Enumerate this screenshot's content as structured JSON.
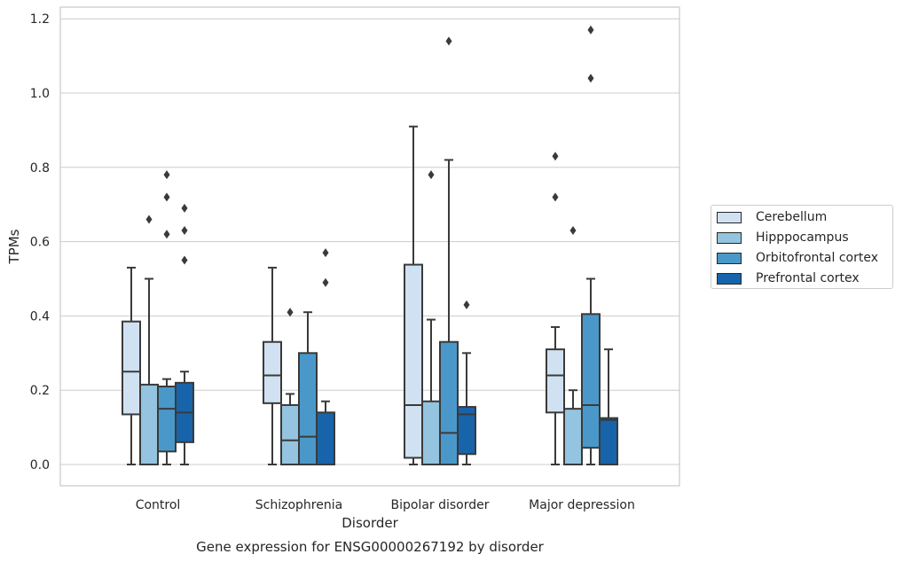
{
  "chart_data": {
    "type": "box",
    "title": "Gene expression for ENSG00000267192 by disorder",
    "xlabel": "Disorder",
    "ylabel": "TPMs",
    "ylim": [
      -0.057,
      1.23
    ],
    "yticks": [
      "0.0",
      "0.2",
      "0.4",
      "0.6",
      "0.8",
      "1.0",
      "1.2"
    ],
    "ytick_values": [
      0,
      0.2,
      0.4,
      0.6,
      0.8,
      1.0,
      1.2
    ],
    "categories": [
      "Control",
      "Schizophrenia",
      "Bipolar disorder",
      "Major depression"
    ],
    "grid": "horizontal",
    "legend_placement": "right",
    "series": [
      {
        "name": "Cerebellum",
        "color": "#d0e1f2",
        "boxes": [
          {
            "whisker_low": 0,
            "q1": 0.135,
            "median": 0.25,
            "q3": 0.385,
            "whisker_high": 0.53,
            "outliers": []
          },
          {
            "whisker_low": 0,
            "q1": 0.165,
            "median": 0.24,
            "q3": 0.33,
            "whisker_high": 0.53,
            "outliers": []
          },
          {
            "whisker_low": 0,
            "q1": 0.018,
            "median": 0.16,
            "q3": 0.538,
            "whisker_high": 0.91,
            "outliers": []
          },
          {
            "whisker_low": 0,
            "q1": 0.14,
            "median": 0.24,
            "q3": 0.31,
            "whisker_high": 0.37,
            "outliers": [
              0.72,
              0.83
            ]
          }
        ]
      },
      {
        "name": "Hipppocampus",
        "color": "#94c4df",
        "boxes": [
          {
            "whisker_low": 0,
            "q1": 0,
            "median": 0,
            "q3": 0.215,
            "whisker_high": 0.5,
            "outliers": [
              0.66
            ]
          },
          {
            "whisker_low": 0,
            "q1": 0,
            "median": 0.065,
            "q3": 0.16,
            "whisker_high": 0.19,
            "outliers": [
              0.41
            ]
          },
          {
            "whisker_low": 0,
            "q1": 0,
            "median": 0,
            "q3": 0.17,
            "whisker_high": 0.39,
            "outliers": [
              0.78
            ]
          },
          {
            "whisker_low": 0,
            "q1": 0,
            "median": 0,
            "q3": 0.15,
            "whisker_high": 0.2,
            "outliers": [
              0.63
            ]
          }
        ]
      },
      {
        "name": "Orbitofrontal cortex",
        "color": "#4a98c9",
        "boxes": [
          {
            "whisker_low": 0,
            "q1": 0.035,
            "median": 0.15,
            "q3": 0.21,
            "whisker_high": 0.23,
            "outliers": [
              0.62,
              0.72,
              0.78
            ]
          },
          {
            "whisker_low": 0,
            "q1": 0,
            "median": 0.075,
            "q3": 0.3,
            "whisker_high": 0.41,
            "outliers": []
          },
          {
            "whisker_low": 0,
            "q1": 0,
            "median": 0.085,
            "q3": 0.33,
            "whisker_high": 0.82,
            "outliers": [
              1.14
            ]
          },
          {
            "whisker_low": 0,
            "q1": 0.045,
            "median": 0.16,
            "q3": 0.405,
            "whisker_high": 0.5,
            "outliers": [
              1.04,
              1.17
            ]
          }
        ]
      },
      {
        "name": "Prefrontal cortex",
        "color": "#1764ab",
        "boxes": [
          {
            "whisker_low": 0,
            "q1": 0.06,
            "median": 0.14,
            "q3": 0.22,
            "whisker_high": 0.25,
            "outliers": [
              0.55,
              0.63,
              0.69
            ]
          },
          {
            "whisker_low": 0,
            "q1": 0,
            "median": 0,
            "q3": 0.14,
            "whisker_high": 0.17,
            "outliers": [
              0.49,
              0.57
            ]
          },
          {
            "whisker_low": 0,
            "q1": 0.028,
            "median": 0.135,
            "q3": 0.155,
            "whisker_high": 0.3,
            "outliers": [
              0.43
            ]
          },
          {
            "whisker_low": 0,
            "q1": 0,
            "median": 0.12,
            "q3": 0.125,
            "whisker_high": 0.31,
            "outliers": []
          }
        ]
      }
    ]
  }
}
